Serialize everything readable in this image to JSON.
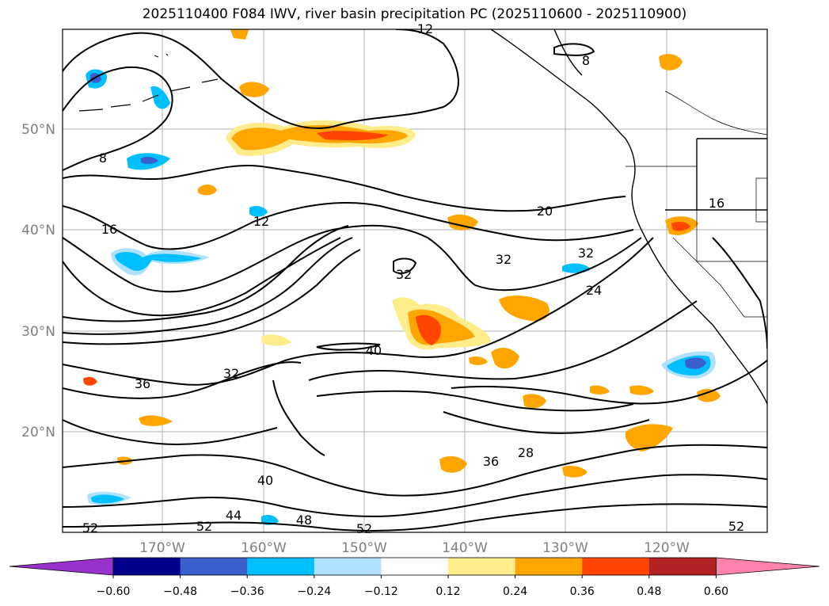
{
  "title": "2025110400 F084 IWV, river basin precipitation PC (2025110600 - 2025110900)",
  "map": {
    "lat_labels": [
      "50°N",
      "40°N",
      "30°N",
      "20°N"
    ],
    "lon_labels": [
      "170°W",
      "160°W",
      "150°W",
      "140°W",
      "130°W",
      "120°W"
    ],
    "contour_labels": [
      "8",
      "8",
      "12",
      "12",
      "16",
      "16",
      "20",
      "24",
      "28",
      "32",
      "32",
      "32",
      "32",
      "36",
      "36",
      "40",
      "40",
      "44",
      "48",
      "52",
      "52",
      "52",
      "52"
    ],
    "contour_color": "#000000",
    "grid": true
  },
  "colorbar": {
    "colors": [
      "#9932cc",
      "#00008b",
      "#3a5fcd",
      "#00bfff",
      "#b0e2ff",
      "#ffffff",
      "#ffec8b",
      "#ffa500",
      "#ff4500",
      "#b22222",
      "#ff83aa"
    ],
    "tick_labels": [
      "−0.60",
      "−0.48",
      "−0.36",
      "−0.24",
      "−0.12",
      "0.12",
      "0.24",
      "0.36",
      "0.48",
      "0.60"
    ]
  }
}
